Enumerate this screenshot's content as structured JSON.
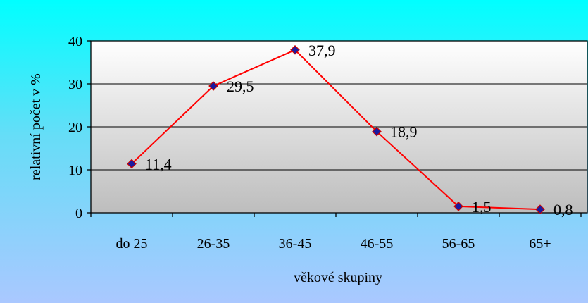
{
  "chart_data": {
    "type": "line",
    "categories": [
      "do 25",
      "26-35",
      "36-45",
      "46-55",
      "56-65",
      "65+"
    ],
    "series": [
      {
        "values": [
          11.4,
          29.5,
          37.9,
          18.9,
          1.5,
          0.8
        ],
        "data_labels": [
          "11,4",
          "29,5",
          "37,9",
          "18,9",
          "1,5",
          "0,8"
        ],
        "color": "#ff0000",
        "marker_color": "#1a1aa0"
      }
    ],
    "xlabel": "věkové skupiny",
    "ylabel": "relativní počet v %",
    "ylim": [
      0,
      40
    ],
    "yticks": [
      0,
      10,
      20,
      30,
      40
    ],
    "grid": true,
    "legend": "none"
  },
  "colors": {
    "line": "#ff0000",
    "marker": "#1a1aa0",
    "frame_gradient_top": "#00ffff",
    "frame_gradient_bottom": "#aac8ff",
    "plot_gradient_top": "#ffffff",
    "plot_gradient_bottom": "#bdbdbd"
  }
}
